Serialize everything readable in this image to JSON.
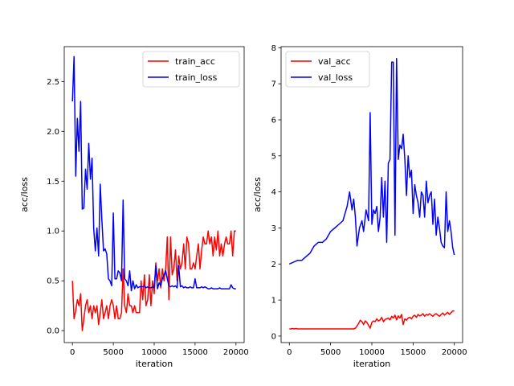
{
  "chart_data": [
    {
      "type": "line",
      "xlabel": "iteration",
      "ylabel": "acc/loss",
      "xlim": [
        -1000,
        21000
      ],
      "ylim": [
        -0.12,
        2.85
      ],
      "xticks": [
        0,
        5000,
        10000,
        15000,
        20000
      ],
      "yticks": [
        0.0,
        0.5,
        1.0,
        1.5,
        2.0,
        2.5
      ],
      "xtick_labels": [
        "0",
        "5000",
        "10000",
        "15000",
        "20000"
      ],
      "ytick_labels": [
        "0.0",
        "0.5",
        "1.0",
        "1.5",
        "2.0",
        "2.5"
      ],
      "legend_position": "top-right",
      "grid": false,
      "series": [
        {
          "name": "train_acc",
          "color": "#ff0000",
          "x": [
            0,
            200,
            400,
            600,
            800,
            1000,
            1200,
            1400,
            1600,
            1800,
            2000,
            2200,
            2400,
            2600,
            2800,
            3000,
            3200,
            3400,
            3600,
            3800,
            4000,
            4200,
            4400,
            4600,
            4800,
            5000,
            5200,
            5400,
            5600,
            5800,
            6000,
            6200,
            6400,
            6600,
            6800,
            7000,
            7200,
            7400,
            7600,
            7800,
            8000,
            8200,
            8400,
            8600,
            8800,
            9000,
            9200,
            9400,
            9600,
            9800,
            10000,
            10200,
            10400,
            10600,
            10800,
            11000,
            11200,
            11400,
            11600,
            11800,
            12000,
            12200,
            12400,
            12600,
            12800,
            13000,
            13200,
            13400,
            13600,
            13800,
            14000,
            14200,
            14400,
            14600,
            14800,
            15000,
            15200,
            15400,
            15600,
            15800,
            16000,
            16200,
            16400,
            16600,
            16800,
            17000,
            17200,
            17400,
            17600,
            17800,
            18000,
            18200,
            18400,
            18600,
            18800,
            19000,
            19200,
            19400,
            19600,
            19800,
            20000
          ],
          "y": [
            0.5,
            0.12,
            0.2,
            0.31,
            0.25,
            0.37,
            0.0,
            0.12,
            0.25,
            0.31,
            0.18,
            0.25,
            0.12,
            0.25,
            0.18,
            0.25,
            0.06,
            0.18,
            0.31,
            0.12,
            0.18,
            0.25,
            0.12,
            0.25,
            0.31,
            0.25,
            0.12,
            0.25,
            0.12,
            0.12,
            0.18,
            0.62,
            0.25,
            0.18,
            0.37,
            0.25,
            0.25,
            0.18,
            0.25,
            0.18,
            0.18,
            0.18,
            0.5,
            0.31,
            0.56,
            0.25,
            0.31,
            0.56,
            0.25,
            0.5,
            0.37,
            0.68,
            0.5,
            0.62,
            0.43,
            0.62,
            0.5,
            0.62,
            0.94,
            0.31,
            0.94,
            0.56,
            0.62,
            0.81,
            0.5,
            0.75,
            0.62,
            0.68,
            0.87,
            0.62,
            0.94,
            0.87,
            0.62,
            0.62,
            0.68,
            0.62,
            0.75,
            0.87,
            0.62,
            0.81,
            0.94,
            0.87,
            0.87,
            1.0,
            0.87,
            0.94,
            0.75,
            0.94,
            0.81,
            1.0,
            0.75,
            0.87,
            0.75,
            0.87,
            0.94,
            0.87,
            0.87,
            1.0,
            0.75,
            1.0,
            1.0
          ]
        },
        {
          "name": "train_loss",
          "color": "#0000ff",
          "x": [
            0,
            200,
            400,
            600,
            800,
            1000,
            1200,
            1400,
            1600,
            1800,
            2000,
            2200,
            2400,
            2600,
            2800,
            3000,
            3200,
            3400,
            3600,
            3800,
            4000,
            4200,
            4400,
            4600,
            4800,
            5000,
            5200,
            5400,
            5600,
            5800,
            6000,
            6200,
            6400,
            6600,
            6800,
            7000,
            7200,
            7400,
            7600,
            7800,
            8000,
            8200,
            8400,
            8600,
            8800,
            9000,
            9200,
            9400,
            9600,
            9800,
            10000,
            10200,
            10400,
            10600,
            10800,
            11000,
            11200,
            11400,
            11600,
            11800,
            12000,
            12200,
            12400,
            12600,
            12800,
            13000,
            13200,
            13400,
            13600,
            13800,
            14000,
            14200,
            14400,
            14600,
            14800,
            15000,
            15200,
            15400,
            15600,
            15800,
            16000,
            16200,
            16400,
            16600,
            16800,
            17000,
            17200,
            17400,
            17600,
            17800,
            18000,
            18200,
            18400,
            18600,
            18800,
            19000,
            19200,
            19400,
            19600,
            19800,
            20000
          ],
          "y": [
            2.3,
            2.75,
            1.55,
            2.13,
            1.8,
            2.3,
            1.22,
            1.23,
            1.62,
            1.42,
            1.88,
            1.52,
            1.73,
            1.02,
            0.8,
            1.03,
            0.75,
            1.47,
            1.12,
            0.8,
            0.82,
            0.77,
            0.52,
            0.5,
            0.45,
            1.18,
            0.52,
            0.52,
            0.6,
            0.58,
            0.5,
            1.31,
            0.52,
            0.5,
            0.45,
            0.6,
            0.4,
            0.5,
            0.42,
            0.46,
            0.43,
            0.44,
            0.44,
            0.44,
            0.45,
            0.43,
            0.44,
            0.43,
            0.43,
            0.44,
            0.43,
            0.65,
            0.42,
            0.48,
            0.45,
            0.52,
            0.56,
            0.6,
            0.52,
            0.45,
            0.44,
            0.45,
            0.44,
            0.45,
            0.43,
            0.65,
            0.44,
            0.45,
            0.43,
            0.44,
            0.43,
            0.43,
            0.44,
            0.43,
            0.43,
            0.52,
            0.43,
            0.43,
            0.43,
            0.44,
            0.43,
            0.44,
            0.43,
            0.42,
            0.42,
            0.43,
            0.42,
            0.42,
            0.42,
            0.42,
            0.43,
            0.42,
            0.42,
            0.42,
            0.42,
            0.42,
            0.42,
            0.46,
            0.43,
            0.42,
            0.42
          ]
        }
      ]
    },
    {
      "type": "line",
      "xlabel": "iteration",
      "ylabel": "acc/loss",
      "xlim": [
        -1000,
        21000
      ],
      "ylim": [
        -0.18,
        8.03
      ],
      "xticks": [
        0,
        5000,
        10000,
        15000,
        20000
      ],
      "yticks": [
        0,
        1,
        2,
        3,
        4,
        5,
        6,
        7,
        8
      ],
      "xtick_labels": [
        "0",
        "5000",
        "10000",
        "15000",
        "20000"
      ],
      "ytick_labels": [
        "0",
        "1",
        "2",
        "3",
        "4",
        "5",
        "6",
        "7",
        "8"
      ],
      "legend_position": "top-left",
      "grid": false,
      "series": [
        {
          "name": "val_acc",
          "color": "#ff0000",
          "x": [
            0,
            200,
            400,
            600,
            800,
            1000,
            1500,
            2000,
            2500,
            3000,
            3500,
            4000,
            4500,
            5000,
            5500,
            6000,
            6500,
            7000,
            7500,
            7800,
            8000,
            8200,
            8400,
            8600,
            8800,
            9000,
            9200,
            9400,
            9600,
            9800,
            10000,
            10200,
            10400,
            10600,
            10800,
            11000,
            11200,
            11400,
            11600,
            11800,
            12000,
            12200,
            12400,
            12600,
            12800,
            13000,
            13200,
            13400,
            13600,
            13800,
            14000,
            14200,
            14400,
            14600,
            14800,
            15000,
            15200,
            15400,
            15600,
            15800,
            16000,
            16200,
            16400,
            16600,
            16800,
            17000,
            17200,
            17400,
            17600,
            17800,
            18000,
            18200,
            18400,
            18600,
            18800,
            19000,
            19200,
            19400,
            19600,
            19800,
            20000
          ],
          "y": [
            0.2,
            0.2,
            0.21,
            0.2,
            0.21,
            0.2,
            0.2,
            0.2,
            0.2,
            0.2,
            0.2,
            0.2,
            0.2,
            0.2,
            0.2,
            0.2,
            0.2,
            0.2,
            0.2,
            0.2,
            0.22,
            0.28,
            0.35,
            0.44,
            0.4,
            0.32,
            0.42,
            0.38,
            0.3,
            0.22,
            0.38,
            0.42,
            0.4,
            0.48,
            0.42,
            0.45,
            0.52,
            0.4,
            0.46,
            0.48,
            0.5,
            0.45,
            0.55,
            0.5,
            0.58,
            0.45,
            0.56,
            0.5,
            0.6,
            0.32,
            0.48,
            0.44,
            0.5,
            0.52,
            0.48,
            0.55,
            0.58,
            0.52,
            0.6,
            0.56,
            0.58,
            0.62,
            0.55,
            0.6,
            0.58,
            0.62,
            0.58,
            0.55,
            0.6,
            0.62,
            0.58,
            0.55,
            0.6,
            0.64,
            0.58,
            0.62,
            0.66,
            0.6,
            0.65,
            0.7,
            0.7
          ]
        },
        {
          "name": "val_loss",
          "color": "#0000ff",
          "x": [
            0,
            500,
            1000,
            1500,
            2000,
            2500,
            3000,
            3500,
            4000,
            4500,
            5000,
            5500,
            6000,
            6500,
            7000,
            7300,
            7600,
            7800,
            8000,
            8200,
            8500,
            8800,
            9000,
            9300,
            9600,
            9800,
            10000,
            10200,
            10400,
            10600,
            10800,
            11000,
            11200,
            11400,
            11600,
            11800,
            12000,
            12200,
            12400,
            12600,
            12800,
            13000,
            13200,
            13400,
            13600,
            13800,
            14000,
            14200,
            14400,
            14600,
            14800,
            15000,
            15200,
            15400,
            15600,
            15800,
            16000,
            16200,
            16400,
            16600,
            16800,
            17000,
            17200,
            17400,
            17600,
            17800,
            18000,
            18200,
            18400,
            18600,
            18800,
            19000,
            19200,
            19400,
            19600,
            19800,
            20000
          ],
          "y": [
            2.0,
            2.05,
            2.1,
            2.1,
            2.2,
            2.3,
            2.5,
            2.6,
            2.6,
            2.7,
            2.9,
            3.0,
            3.1,
            3.2,
            3.6,
            4.0,
            3.5,
            3.8,
            3.3,
            2.5,
            3.0,
            3.2,
            2.9,
            3.5,
            3.2,
            6.2,
            3.1,
            3.5,
            3.4,
            3.6,
            2.9,
            3.3,
            4.4,
            3.3,
            4.3,
            2.6,
            4.8,
            4.9,
            7.6,
            7.6,
            2.8,
            7.7,
            4.9,
            5.3,
            5.2,
            5.6,
            4.9,
            3.9,
            5.0,
            4.4,
            4.6,
            3.4,
            4.2,
            3.9,
            3.7,
            3.3,
            4.0,
            3.9,
            3.3,
            4.3,
            3.7,
            3.9,
            4.0,
            3.1,
            3.8,
            2.8,
            3.3,
            3.0,
            2.6,
            2.5,
            2.45,
            4.0,
            2.9,
            3.2,
            2.9,
            2.45,
            2.25
          ]
        }
      ]
    }
  ]
}
